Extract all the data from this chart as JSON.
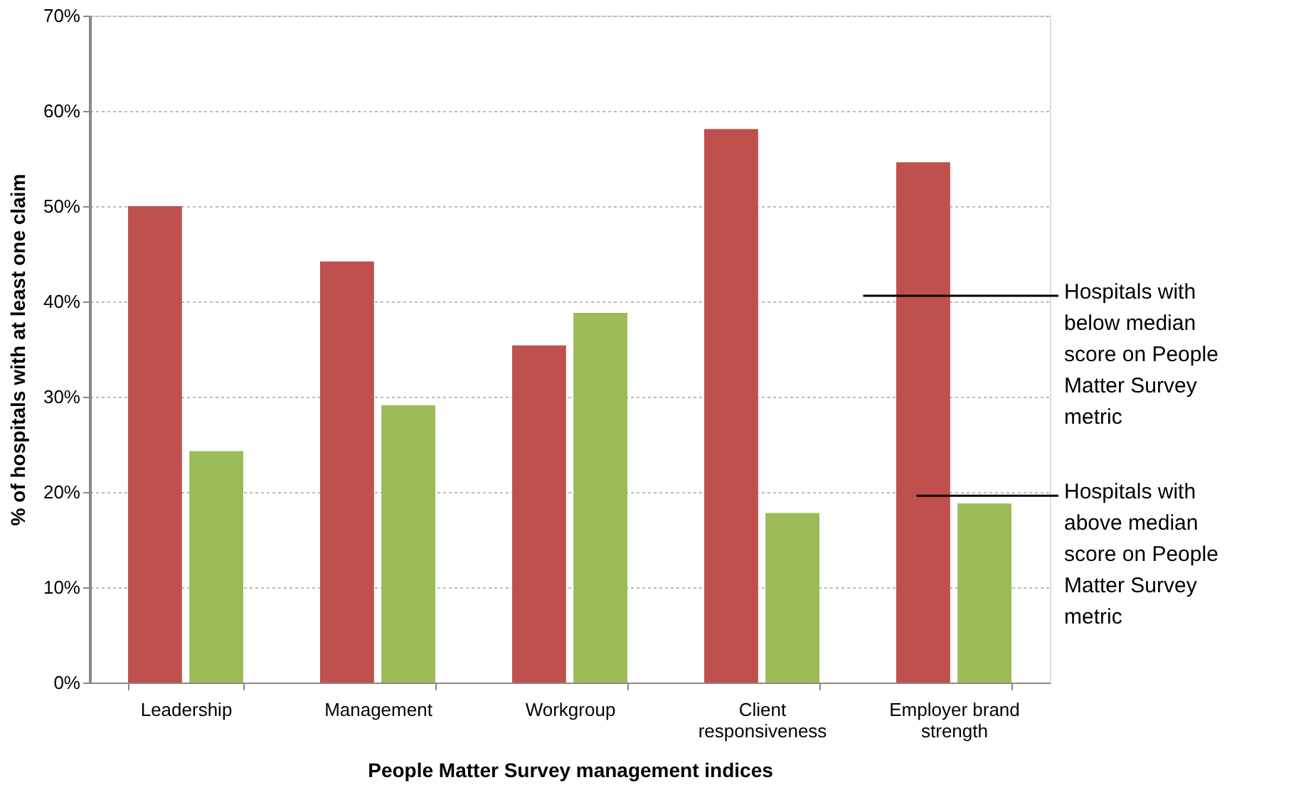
{
  "chart_data": {
    "type": "bar",
    "xlabel": "People Matter Survey management indices",
    "ylabel": "% of hospitals with at least one claim",
    "categories": [
      "Leadership",
      "Management",
      "Workgroup",
      "Client responsiveness",
      "Employer brand strength"
    ],
    "series": [
      {
        "name": "Hospitals with below median score on People Matter Survey metric",
        "color": "#c0504d",
        "values": [
          50.0,
          44.2,
          35.4,
          58.1,
          54.6
        ]
      },
      {
        "name": "Hospitals with above median score on People Matter Survey metric",
        "color": "#9bbb59",
        "values": [
          24.3,
          29.1,
          38.8,
          17.8,
          18.8
        ]
      }
    ],
    "ylim": [
      0,
      70
    ],
    "yticks": [
      {
        "value": 0,
        "label": "0%"
      },
      {
        "value": 10,
        "label": "10%"
      },
      {
        "value": 20,
        "label": "20%"
      },
      {
        "value": 30,
        "label": "30%"
      },
      {
        "value": 40,
        "label": "40%"
      },
      {
        "value": 50,
        "label": "50%"
      },
      {
        "value": 60,
        "label": "60%"
      },
      {
        "value": 70,
        "label": "70%"
      }
    ],
    "grid": "y"
  }
}
